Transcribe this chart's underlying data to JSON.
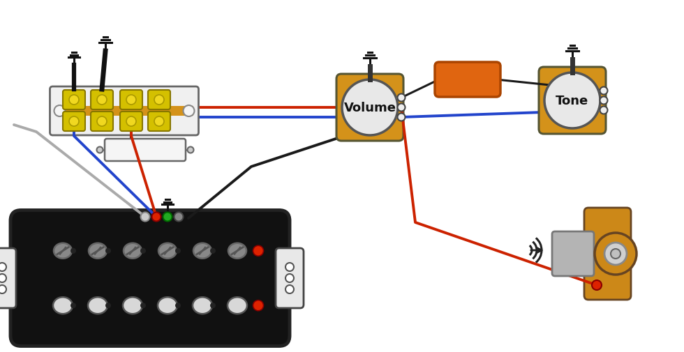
{
  "bg": "#ffffff",
  "col": {
    "blue": "#2244cc",
    "red": "#cc2200",
    "black": "#1a1a1a",
    "gray_wire": "#aaaaaa",
    "white_wire": "#d8d8d8",
    "green_wire": "#229922",
    "gray2_wire": "#888888",
    "orange_cap": "#e06510",
    "pot_body": "#d4921a",
    "pot_face": "#e8e8e8",
    "switch_bg": "#f0f0f0",
    "switch_gold": "#d4c000",
    "switch_orange": "#d4921a",
    "jack_wood": "#cc8818",
    "jack_metal": "#b4b4b4"
  }
}
